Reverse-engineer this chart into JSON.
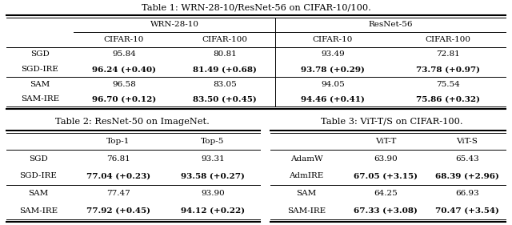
{
  "table1_title": "Table 1: WRN-28-10/ResNet-56 on CIFAR-10/100.",
  "table2_title": "Table 2: ResNet-50 on ImageNet.",
  "table3_title": "Table 3: ViT-T/S on CIFAR-100.",
  "table1": {
    "col_group_headers": [
      "WRN-28-10",
      "ResNet-56"
    ],
    "col_headers": [
      "CIFAR-10",
      "CIFAR-100",
      "CIFAR-10",
      "CIFAR-100"
    ],
    "row_groups": [
      {
        "rows": [
          {
            "label": "SGD",
            "vals": [
              "95.84",
              "80.81",
              "93.49",
              "72.81"
            ],
            "bold": [
              false,
              false,
              false,
              false
            ]
          },
          {
            "label": "SGD-IRE",
            "vals": [
              "96.24 (+0.40)",
              "81.49 (+0.68)",
              "93.78 (+0.29)",
              "73.78 (+0.97)"
            ],
            "bold": [
              true,
              true,
              true,
              true
            ]
          }
        ]
      },
      {
        "rows": [
          {
            "label": "SAM",
            "vals": [
              "96.58",
              "83.05",
              "94.05",
              "75.54"
            ],
            "bold": [
              false,
              false,
              false,
              false
            ]
          },
          {
            "label": "SAM-IRE",
            "vals": [
              "96.70 (+0.12)",
              "83.50 (+0.45)",
              "94.46 (+0.41)",
              "75.86 (+0.32)"
            ],
            "bold": [
              true,
              true,
              true,
              true
            ]
          }
        ]
      }
    ]
  },
  "table2": {
    "col_headers": [
      "Top-1",
      "Top-5"
    ],
    "row_groups": [
      {
        "rows": [
          {
            "label": "SGD",
            "vals": [
              "76.81",
              "93.31"
            ],
            "bold": [
              false,
              false
            ]
          },
          {
            "label": "SGD-IRE",
            "vals": [
              "77.04 (+0.23)",
              "93.58 (+0.27)"
            ],
            "bold": [
              true,
              true
            ]
          }
        ]
      },
      {
        "rows": [
          {
            "label": "SAM",
            "vals": [
              "77.47",
              "93.90"
            ],
            "bold": [
              false,
              false
            ]
          },
          {
            "label": "SAM-IRE",
            "vals": [
              "77.92 (+0.45)",
              "94.12 (+0.22)"
            ],
            "bold": [
              true,
              true
            ]
          }
        ]
      }
    ]
  },
  "table3": {
    "col_headers": [
      "ViT-T",
      "ViT-S"
    ],
    "row_groups": [
      {
        "rows": [
          {
            "label": "AdamW",
            "vals": [
              "63.90",
              "65.43"
            ],
            "bold": [
              false,
              false
            ]
          },
          {
            "label": "AdmIRE",
            "vals": [
              "67.05 (+3.15)",
              "68.39 (+2.96)"
            ],
            "bold": [
              true,
              true
            ]
          }
        ]
      },
      {
        "rows": [
          {
            "label": "SAM",
            "vals": [
              "64.25",
              "66.93"
            ],
            "bold": [
              false,
              false
            ]
          },
          {
            "label": "SAM-IRE",
            "vals": [
              "67.33 (+3.08)",
              "70.47 (+3.54)"
            ],
            "bold": [
              true,
              true
            ]
          }
        ]
      }
    ]
  },
  "bg_color": "#ffffff",
  "fontsize": 7.5,
  "title_fontsize": 8.2
}
